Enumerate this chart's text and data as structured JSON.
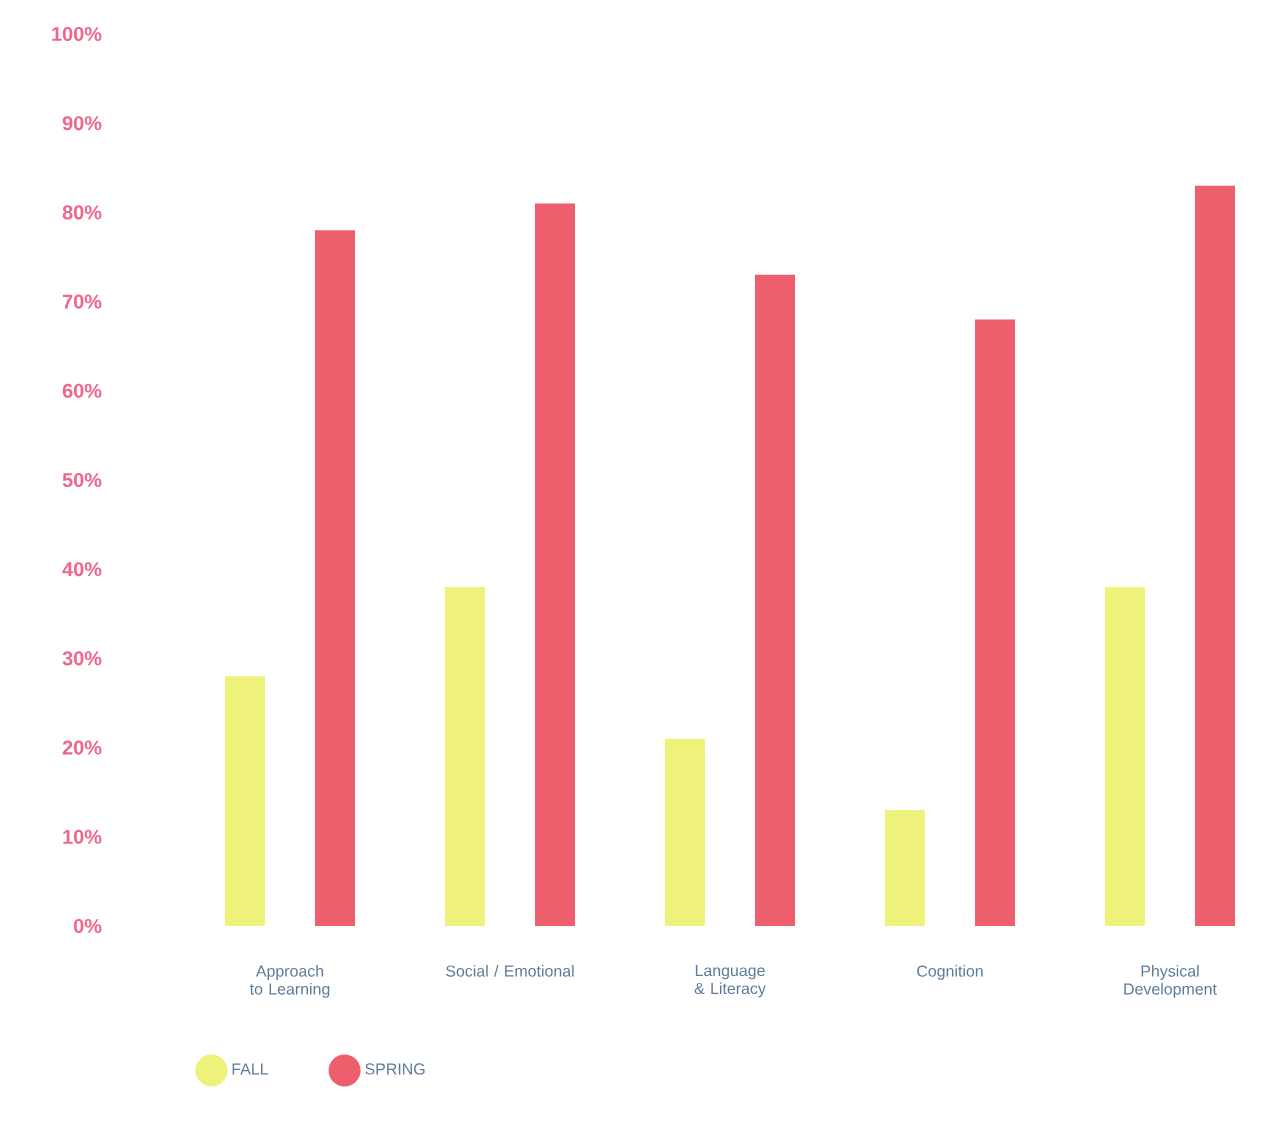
{
  "chart_data": {
    "type": "bar",
    "categories": [
      "Approach to Learning",
      "Social / Emotional",
      "Language & Literacy",
      "Cognition",
      "Physical Development"
    ],
    "series": [
      {
        "name": "FALL",
        "color": "#eef27a",
        "values": [
          28,
          38,
          21,
          13,
          38
        ]
      },
      {
        "name": "SPRING",
        "color": "#ee5f6e",
        "values": [
          78,
          81,
          73,
          68,
          83
        ]
      }
    ],
    "ylim": [
      0,
      100
    ],
    "yticks": [
      {
        "value": 0,
        "label": "0%"
      },
      {
        "value": 10,
        "label": "10%"
      },
      {
        "value": 20,
        "label": "20%"
      },
      {
        "value": 30,
        "label": "30%"
      },
      {
        "value": 40,
        "label": "40%"
      },
      {
        "value": 50,
        "label": "50%"
      },
      {
        "value": 60,
        "label": "60%"
      },
      {
        "value": 70,
        "label": "70%"
      },
      {
        "value": 80,
        "label": "80%"
      },
      {
        "value": 90,
        "label": "90%"
      },
      {
        "value": 100,
        "label": "100%"
      }
    ],
    "legend": "bottom left"
  }
}
